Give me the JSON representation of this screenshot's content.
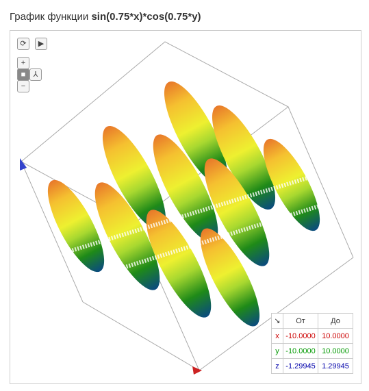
{
  "header": {
    "title_prefix": "График функции",
    "function": "sin(0.75*x)*cos(0.75*y)"
  },
  "range_table": {
    "columns": [
      "От",
      "До"
    ],
    "rows": [
      {
        "axis": "x",
        "from": "-10.0000",
        "to": "10.0000"
      },
      {
        "axis": "y",
        "from": "-10.0000",
        "to": "10.0000"
      },
      {
        "axis": "z",
        "from": "-1.29945",
        "to": "1.29945"
      }
    ]
  }
}
